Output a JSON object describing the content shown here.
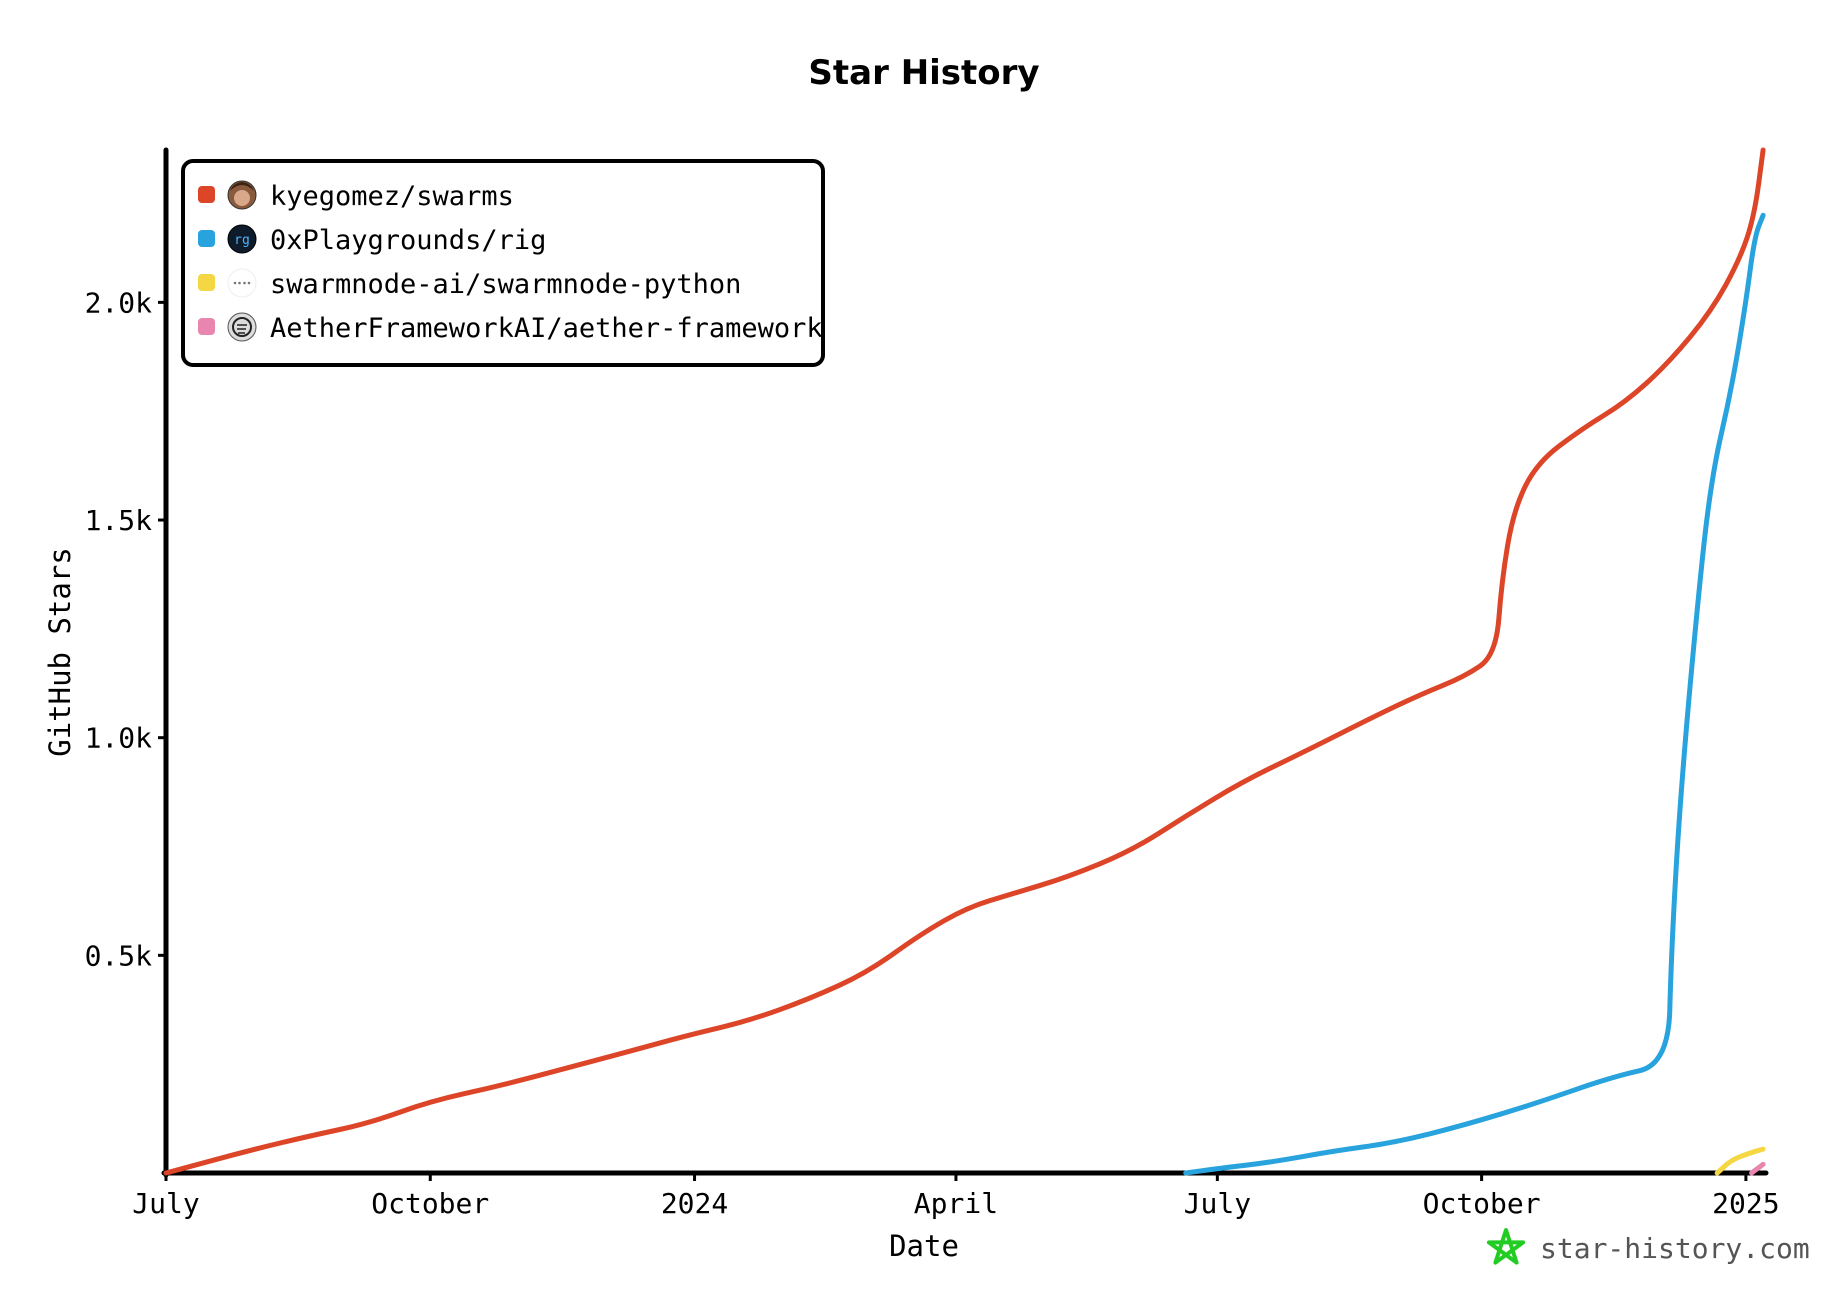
{
  "chart_data": {
    "type": "line",
    "title": "Star History",
    "xlabel": "Date",
    "ylabel": "GitHub Stars",
    "x_range": [
      "2023-07-01",
      "2025-01-08"
    ],
    "ylim": [
      0,
      2350
    ],
    "x_ticks": [
      {
        "label": "July",
        "date": "2023-07-01"
      },
      {
        "label": "October",
        "date": "2023-10-01"
      },
      {
        "label": "2024",
        "date": "2024-01-01"
      },
      {
        "label": "April",
        "date": "2024-04-01"
      },
      {
        "label": "July",
        "date": "2024-07-01"
      },
      {
        "label": "October",
        "date": "2024-10-01"
      },
      {
        "label": "2025",
        "date": "2025-01-01"
      }
    ],
    "y_ticks": [
      {
        "label": "0.5k",
        "value": 500
      },
      {
        "label": "1.0k",
        "value": 1000
      },
      {
        "label": "1.5k",
        "value": 1500
      },
      {
        "label": "2.0k",
        "value": 2000
      }
    ],
    "grid": false,
    "legend_position": "top-left",
    "series": [
      {
        "name": "kyegomez/swarms",
        "color": "#dd4528",
        "avatar_icon": "user-photo-avatar-icon",
        "points": [
          [
            "2023-07-01",
            0
          ],
          [
            "2023-07-15",
            25
          ],
          [
            "2023-08-01",
            55
          ],
          [
            "2023-08-20",
            85
          ],
          [
            "2023-09-10",
            115
          ],
          [
            "2023-10-01",
            165
          ],
          [
            "2023-10-25",
            200
          ],
          [
            "2023-11-20",
            245
          ],
          [
            "2023-12-15",
            290
          ],
          [
            "2024-01-01",
            320
          ],
          [
            "2024-01-20",
            350
          ],
          [
            "2024-02-10",
            400
          ],
          [
            "2024-03-01",
            460
          ],
          [
            "2024-03-20",
            550
          ],
          [
            "2024-04-05",
            610
          ],
          [
            "2024-04-20",
            640
          ],
          [
            "2024-05-10",
            680
          ],
          [
            "2024-06-01",
            740
          ],
          [
            "2024-06-20",
            820
          ],
          [
            "2024-07-10",
            900
          ],
          [
            "2024-08-01",
            970
          ],
          [
            "2024-08-25",
            1050
          ],
          [
            "2024-09-10",
            1100
          ],
          [
            "2024-09-25",
            1140
          ],
          [
            "2024-10-06",
            1190
          ],
          [
            "2024-10-08",
            1360
          ],
          [
            "2024-10-12",
            1520
          ],
          [
            "2024-10-20",
            1630
          ],
          [
            "2024-11-05",
            1710
          ],
          [
            "2024-11-20",
            1770
          ],
          [
            "2024-12-05",
            1860
          ],
          [
            "2024-12-20",
            1980
          ],
          [
            "2024-12-30",
            2100
          ],
          [
            "2025-01-04",
            2200
          ],
          [
            "2025-01-07",
            2350
          ]
        ]
      },
      {
        "name": "0xPlaygrounds/rig",
        "color": "#28a3dd",
        "avatar_icon": "rig-logo-avatar-icon",
        "points": [
          [
            "2024-06-20",
            0
          ],
          [
            "2024-07-01",
            10
          ],
          [
            "2024-07-20",
            25
          ],
          [
            "2024-08-10",
            50
          ],
          [
            "2024-09-01",
            70
          ],
          [
            "2024-09-25",
            110
          ],
          [
            "2024-10-20",
            160
          ],
          [
            "2024-11-15",
            220
          ],
          [
            "2024-12-05",
            250
          ],
          [
            "2024-12-06",
            500
          ],
          [
            "2024-12-09",
            850
          ],
          [
            "2024-12-15",
            1300
          ],
          [
            "2024-12-20",
            1600
          ],
          [
            "2024-12-27",
            1800
          ],
          [
            "2025-01-01",
            2000
          ],
          [
            "2025-01-04",
            2150
          ],
          [
            "2025-01-07",
            2200
          ]
        ]
      },
      {
        "name": "swarmnode-ai/swarmnode-python",
        "color": "#f4d742",
        "avatar_icon": "swarmnode-logo-avatar-icon",
        "points": [
          [
            "2024-12-22",
            0
          ],
          [
            "2024-12-27",
            30
          ],
          [
            "2025-01-02",
            45
          ],
          [
            "2025-01-07",
            55
          ]
        ]
      },
      {
        "name": "AetherFrameworkAI/aether-framework",
        "color": "#e886b0",
        "avatar_icon": "aether-logo-avatar-icon",
        "points": [
          [
            "2025-01-03",
            0
          ],
          [
            "2025-01-05",
            10
          ],
          [
            "2025-01-07",
            20
          ]
        ]
      }
    ]
  },
  "watermark": {
    "text": "star-history.com",
    "icon": "star-history-logo-icon",
    "icon_color": "#22cc22"
  }
}
